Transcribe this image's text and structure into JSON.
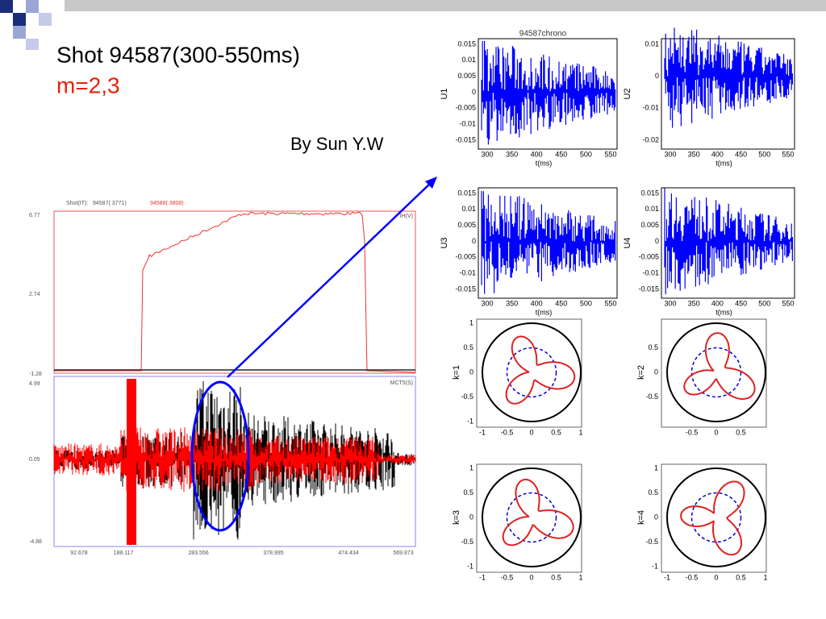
{
  "slide": {
    "title": "Shot 94587(300-550ms)",
    "subtitle": "m=2,3",
    "author": "By Sun Y.W"
  },
  "overview": {
    "shot_label": "Shot(IT):",
    "shot_a": "94587( 3771)",
    "shot_b": "94588( 3808)",
    "top_channel": "IH(V)",
    "bottom_channel": "MCT5(S)",
    "top_yticks": [
      "6.77",
      "2.74",
      "-1.28"
    ],
    "bottom_yticks": [
      "4.99",
      "0.05",
      "-4.88"
    ],
    "xticks": [
      "92.678",
      "188.117",
      "283.556",
      "378.995",
      "474.434",
      "569.873"
    ]
  },
  "chrono": {
    "title": "94587chrono",
    "panels": [
      {
        "ylabel": "U1",
        "xlabel": "t(ms)",
        "yticks": [
          "0.015",
          "0.01",
          "0.005",
          "0",
          "-0.005",
          "-0.01",
          "-0.015"
        ],
        "xticks": [
          "300",
          "350",
          "400",
          "450",
          "500",
          "550"
        ]
      },
      {
        "ylabel": "U2",
        "xlabel": "t(ms)",
        "yticks": [
          "0.01",
          "0",
          "-0.01",
          "-0.02"
        ],
        "xticks": [
          "300",
          "350",
          "400",
          "450",
          "500",
          "550"
        ]
      },
      {
        "ylabel": "U3",
        "xlabel": "t(ms)",
        "yticks": [
          "0.015",
          "0.01",
          "0.005",
          "0",
          "-0.005",
          "-0.01",
          "-0.015"
        ],
        "xticks": [
          "300",
          "350",
          "400",
          "450",
          "500",
          "550"
        ]
      },
      {
        "ylabel": "U4",
        "xlabel": "t(ms)",
        "yticks": [
          "0.015",
          "0.01",
          "0.005",
          "0",
          "-0.005",
          "-0.01",
          "-0.015"
        ],
        "xticks": [
          "300",
          "350",
          "400",
          "450",
          "500",
          "550"
        ]
      }
    ]
  },
  "polar": {
    "panels": [
      {
        "ylabel": "k=1",
        "yticks": [
          "1",
          "0.5",
          "0",
          "-0.5",
          "-1"
        ],
        "xticks": [
          "-1",
          "-0.5",
          "0",
          "0.5",
          "1"
        ]
      },
      {
        "ylabel": "k=2",
        "yticks": [
          "0.5",
          "0",
          "-0.5"
        ],
        "xticks": [
          "-0.5",
          "0",
          "0.5"
        ]
      },
      {
        "ylabel": "k=3",
        "yticks": [
          "1",
          "0.5",
          "0",
          "-0.5",
          "-1"
        ],
        "xticks": [
          "-1",
          "-0.5",
          "0",
          "0.5",
          "1"
        ]
      },
      {
        "ylabel": "k=4",
        "yticks": [
          "1",
          "0.5",
          "0",
          "-0.5",
          "-1"
        ],
        "xticks": [
          "-1",
          "-0.5",
          "0",
          "0.5",
          "1"
        ]
      }
    ]
  }
}
